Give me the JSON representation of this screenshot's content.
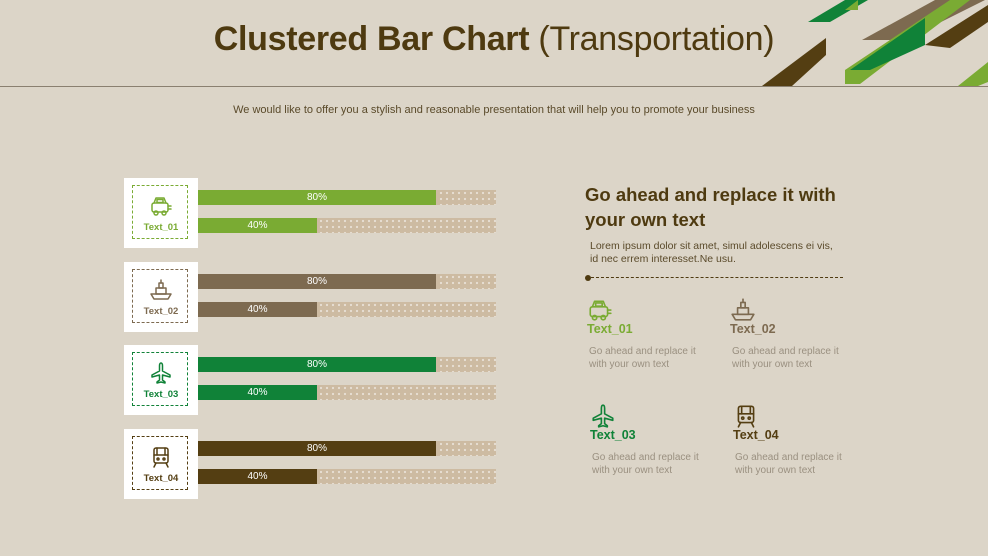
{
  "header": {
    "title_bold": "Clustered Bar Chart",
    "title_light": "(Transportation)",
    "subtitle": "We would like to offer you a stylish and reasonable presentation that will help you to promote your business"
  },
  "colors": {
    "background": "#dcd5c8",
    "track": "#cdbba2",
    "green_light": "#7aab33",
    "taupe": "#7d6a50",
    "green_dark": "#108238",
    "brown_dark": "#543e12",
    "heading": "#4e3a10"
  },
  "chart_data": {
    "type": "bar",
    "orientation": "horizontal",
    "categories": [
      "Text_01",
      "Text_02",
      "Text_03",
      "Text_04"
    ],
    "series": [
      {
        "values": [
          80,
          80,
          80,
          80
        ]
      },
      {
        "values": [
          40,
          40,
          40,
          40
        ]
      }
    ],
    "value_labels": [
      [
        "80%",
        "40%"
      ],
      [
        "80%",
        "40%"
      ],
      [
        "80%",
        "40%"
      ],
      [
        "80%",
        "40%"
      ]
    ],
    "category_icons": [
      "car-icon",
      "ship-icon",
      "airplane-icon",
      "train-icon"
    ],
    "category_colors": [
      "#7aab33",
      "#7d6a50",
      "#108238",
      "#543e12"
    ],
    "ylim": [
      0,
      100
    ]
  },
  "side": {
    "heading": "Go ahead and replace it with your own text",
    "text": "Lorem ipsum dolor sit amet, simul adolescens ei vis, id nec errem interesset.Ne usu."
  },
  "items": [
    {
      "title": "Text_01",
      "desc": "Go ahead and replace it with your own text",
      "icon": "car-icon",
      "color": "#7aab33"
    },
    {
      "title": "Text_02",
      "desc": "Go ahead and replace it with your own text",
      "icon": "ship-icon",
      "color": "#7d6a50"
    },
    {
      "title": "Text_03",
      "desc": "Go ahead and replace it with your own text",
      "icon": "airplane-icon",
      "color": "#108238"
    },
    {
      "title": "Text_04",
      "desc": "Go ahead and replace it with your own text",
      "icon": "train-icon",
      "color": "#543e12"
    }
  ]
}
